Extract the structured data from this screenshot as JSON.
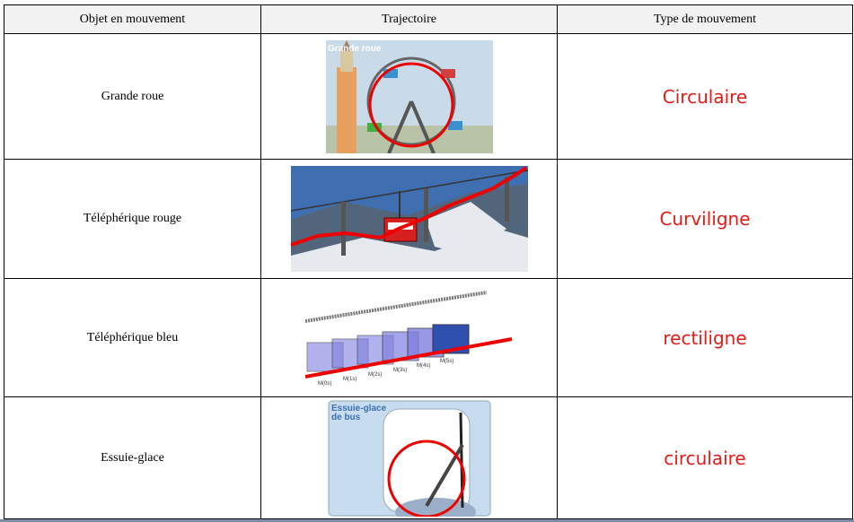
{
  "table": {
    "headers": [
      "Objet en mouvement",
      "Trajectoire",
      "Type de mouvement"
    ],
    "rows": [
      {
        "object": "Grande roue",
        "caption": "Grande roue",
        "movement": "Circulaire"
      },
      {
        "object": "Téléphérique rouge",
        "movement": "Curviligne"
      },
      {
        "object": "Téléphérique bleu",
        "points": [
          "M(0s)",
          "M(1s)",
          "M(2s)",
          "M(3s)",
          "M(4s)",
          "M(5s)"
        ],
        "movement": "rectiligne"
      },
      {
        "object": "Essuie-glace",
        "caption": "Essuie-glace de bus",
        "movement": "circulaire"
      }
    ]
  }
}
